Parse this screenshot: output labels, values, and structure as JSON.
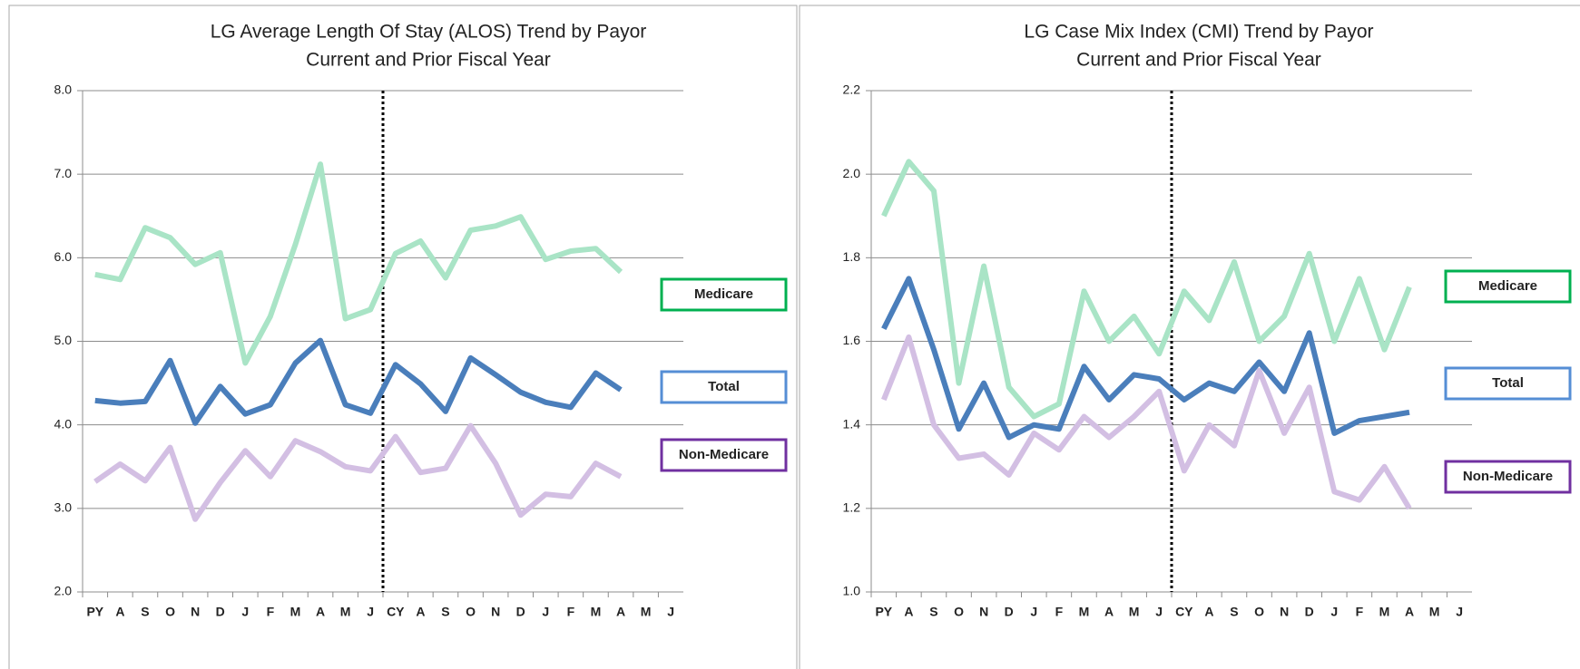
{
  "chart_data": [
    {
      "type": "line",
      "title": "LG Average Length Of Stay (ALOS) Trend by Payor",
      "subtitle": "Current and Prior Fiscal Year",
      "categories": [
        "PY",
        "A",
        "S",
        "O",
        "N",
        "D",
        "J",
        "F",
        "M",
        "A",
        "M",
        "J",
        "CY",
        "A",
        "S",
        "O",
        "N",
        "D",
        "J",
        "F",
        "M",
        "A",
        "M",
        "J"
      ],
      "ylim": [
        2,
        8
      ],
      "yticks": [
        {
          "value": 2,
          "label": "2.0"
        },
        {
          "value": 3,
          "label": "3.0"
        },
        {
          "value": 4,
          "label": "4.0"
        },
        {
          "value": 5,
          "label": "5.0"
        },
        {
          "value": 6,
          "label": "6.0"
        },
        {
          "value": 7,
          "label": "7.0"
        },
        {
          "value": 8,
          "label": "8.0"
        }
      ],
      "grid": true,
      "series": [
        {
          "name": "Medicare",
          "color": "#a9e4c6",
          "border_color": "#00b050",
          "values": [
            5.8,
            5.74,
            6.36,
            6.24,
            5.92,
            6.06,
            4.74,
            5.3,
            6.16,
            7.12,
            5.27,
            5.38,
            6.05,
            6.2,
            5.76,
            6.33,
            6.38,
            6.49,
            5.98,
            6.08,
            6.11,
            5.83,
            null,
            null
          ]
        },
        {
          "name": "Total",
          "color": "#4a7ebb",
          "border_color": "#558ed5",
          "values": [
            4.29,
            4.26,
            4.28,
            4.77,
            4.02,
            4.46,
            4.13,
            4.24,
            4.74,
            5.01,
            4.24,
            4.14,
            4.72,
            4.49,
            4.16,
            4.8,
            4.6,
            4.39,
            4.27,
            4.21,
            4.62,
            4.42,
            null,
            null
          ]
        },
        {
          "name": "Non-Medicare",
          "color": "#d3bfe3",
          "border_color": "#7030a0",
          "values": [
            3.32,
            3.53,
            3.33,
            3.73,
            2.87,
            3.31,
            3.69,
            3.38,
            3.81,
            3.68,
            3.5,
            3.45,
            3.86,
            3.43,
            3.48,
            3.99,
            3.54,
            2.92,
            3.17,
            3.14,
            3.54,
            3.38,
            null,
            null
          ]
        }
      ]
    },
    {
      "type": "line",
      "title": "LG Case Mix Index (CMI) Trend by Payor",
      "subtitle": "Current and Prior Fiscal Year",
      "categories": [
        "PY",
        "A",
        "S",
        "O",
        "N",
        "D",
        "J",
        "F",
        "M",
        "A",
        "M",
        "J",
        "CY",
        "A",
        "S",
        "O",
        "N",
        "D",
        "J",
        "F",
        "M",
        "A",
        "M",
        "J"
      ],
      "ylim": [
        1,
        2.2
      ],
      "yticks": [
        {
          "value": 1,
          "label": "1.0"
        },
        1.2,
        1.4,
        1.6,
        1.8,
        {
          "value": 2,
          "label": "2.0"
        },
        2.2
      ],
      "grid": true,
      "series": [
        {
          "name": "Medicare",
          "color": "#a9e4c6",
          "border_color": "#00b050",
          "values": [
            1.9,
            2.03,
            1.96,
            1.5,
            1.78,
            1.49,
            1.42,
            1.45,
            1.72,
            1.6,
            1.66,
            1.57,
            1.72,
            1.65,
            1.79,
            1.6,
            1.66,
            1.81,
            1.6,
            1.75,
            1.58,
            1.73,
            null,
            null
          ]
        },
        {
          "name": "Total",
          "color": "#4a7ebb",
          "border_color": "#558ed5",
          "values": [
            1.63,
            1.75,
            1.58,
            1.39,
            1.5,
            1.37,
            1.4,
            1.39,
            1.54,
            1.46,
            1.52,
            1.51,
            1.46,
            1.5,
            1.48,
            1.55,
            1.48,
            1.62,
            1.38,
            1.41,
            1.42,
            1.43,
            null,
            null
          ]
        },
        {
          "name": "Non-Medicare",
          "color": "#d3bfe3",
          "border_color": "#7030a0",
          "values": [
            1.46,
            1.61,
            1.4,
            1.32,
            1.33,
            1.28,
            1.38,
            1.34,
            1.42,
            1.37,
            1.42,
            1.48,
            1.29,
            1.4,
            1.35,
            1.53,
            1.38,
            1.49,
            1.24,
            1.22,
            1.3,
            1.2,
            null,
            null
          ]
        }
      ]
    }
  ]
}
